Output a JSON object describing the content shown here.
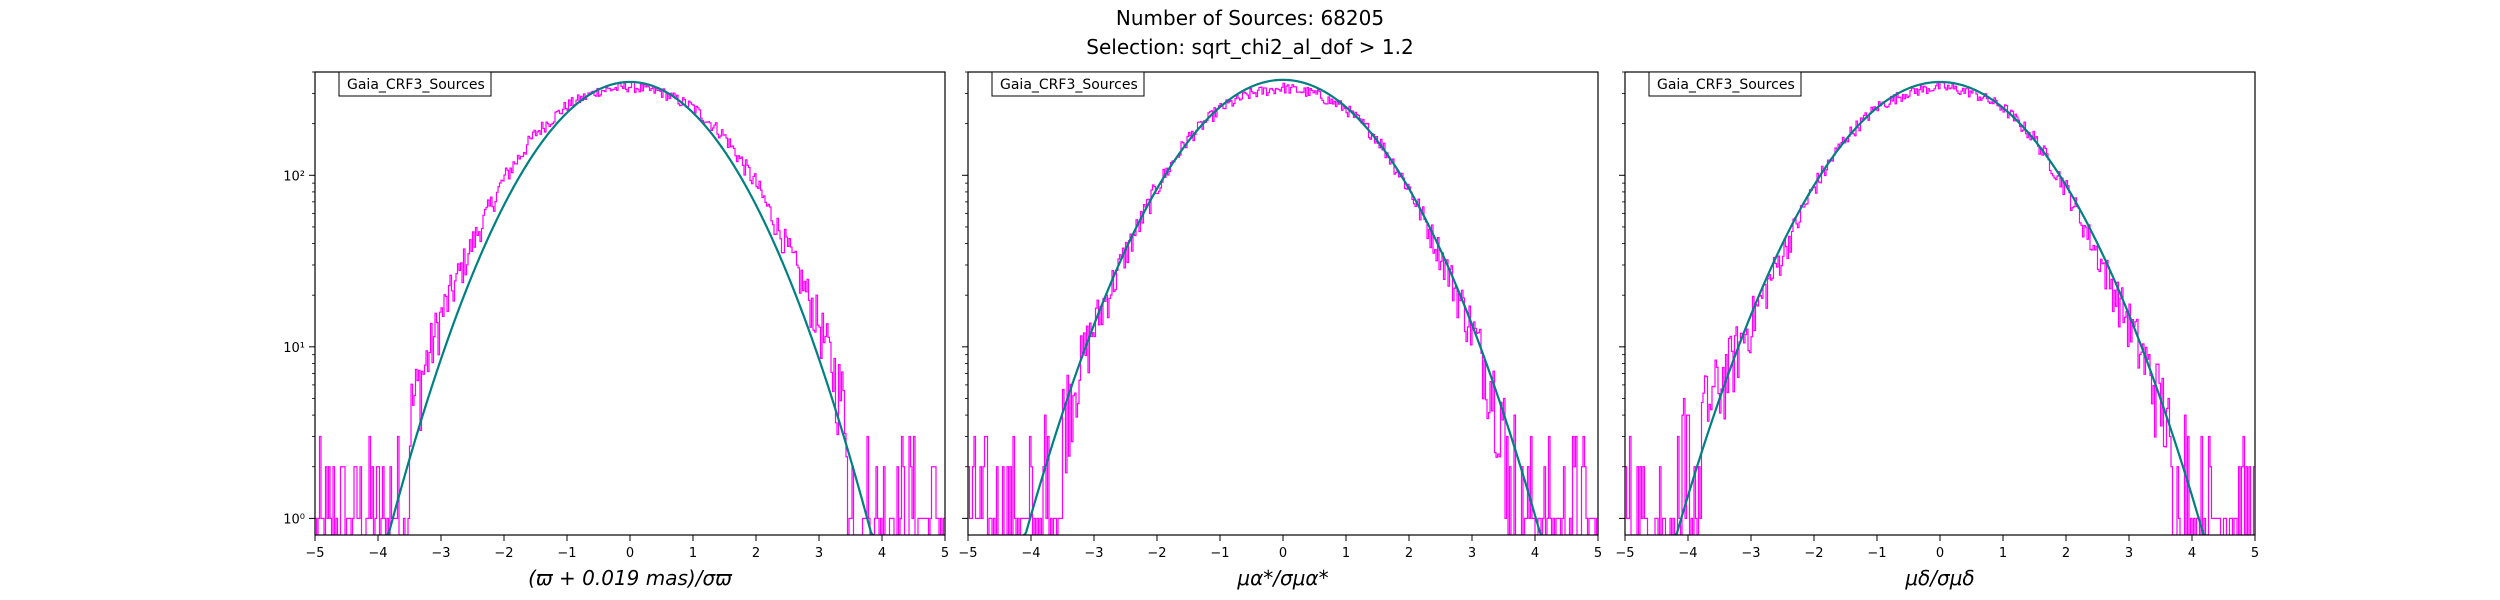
{
  "figure": {
    "title": "Number of Sources: 68205",
    "subtitle": "Selection: sqrt_chi2_al_dof > 1.2"
  },
  "colors": {
    "histogram": "#ff00ff",
    "fit": "#008080",
    "fit_tail": "#1f77b4"
  },
  "chart_data": [
    {
      "type": "line",
      "legend": "Gaia_CRF3_Sources",
      "xlabel": "(ϖ + 0.019 mas)/σϖ",
      "xlim": [
        -5,
        5
      ],
      "ylim": [
        0.8,
        400
      ],
      "yscale": "log",
      "xticks": [
        "−5",
        "−4",
        "−3",
        "−2",
        "−1",
        "0",
        "1",
        "2",
        "3",
        "4",
        "5"
      ],
      "yticks": [
        "10⁰",
        "10¹",
        "10²"
      ],
      "series": [
        {
          "kind": "histogram",
          "x": [
            -5,
            -4.5,
            -4,
            -3.5,
            -3,
            -2.5,
            -2,
            -1.5,
            -1,
            -0.5,
            0,
            0.5,
            1,
            1.5,
            2,
            2.5,
            3,
            3.5,
            4,
            4.5,
            5
          ],
          "values": [
            1,
            1,
            1.5,
            4,
            15,
            40,
            95,
            175,
            255,
            310,
            330,
            305,
            250,
            170,
            90,
            38,
            14,
            3.5,
            1.5,
            1,
            1
          ]
        },
        {
          "kind": "gaussian_fit",
          "amplitude": 350,
          "mean": 0,
          "sigma": 1.1
        }
      ]
    },
    {
      "type": "line",
      "legend": "Gaia_CRF3_Sources",
      "xlabel": "μα*/σμα*",
      "xlim": [
        -5,
        5
      ],
      "ylim": [
        0.8,
        400
      ],
      "yscale": "log",
      "xticks": [
        "−5",
        "−4",
        "−3",
        "−2",
        "−1",
        "0",
        "1",
        "2",
        "3",
        "4",
        "5"
      ],
      "yticks": [],
      "series": [
        {
          "kind": "histogram",
          "x": [
            -5,
            -4.5,
            -4,
            -3.5,
            -3,
            -2.5,
            -2,
            -1.5,
            -1,
            -0.5,
            0,
            0.5,
            1,
            1.5,
            2,
            2.5,
            3,
            3.5,
            4,
            4.5,
            5
          ],
          "values": [
            1,
            1,
            1.5,
            4,
            13,
            35,
            85,
            165,
            245,
            300,
            325,
            300,
            245,
            165,
            85,
            35,
            13,
            4,
            1.5,
            1,
            1
          ]
        },
        {
          "kind": "gaussian_fit",
          "amplitude": 360,
          "mean": 0,
          "sigma": 1.17
        }
      ]
    },
    {
      "type": "line",
      "legend": "Gaia_CRF3_Sources",
      "xlabel": "μδ/σμδ",
      "xlim": [
        -5,
        5
      ],
      "ylim": [
        0.8,
        400
      ],
      "yscale": "log",
      "xticks": [
        "−5",
        "−4",
        "−3",
        "−2",
        "−1",
        "0",
        "1",
        "2",
        "3",
        "4",
        "5"
      ],
      "yticks": [],
      "series": [
        {
          "kind": "histogram",
          "x": [
            -5,
            -4.5,
            -4,
            -3.5,
            -3,
            -2.5,
            -2,
            -1.5,
            -1,
            -0.5,
            0,
            0.5,
            1,
            1.5,
            2,
            2.5,
            3,
            3.5,
            4,
            4.5,
            5
          ],
          "values": [
            1,
            1.5,
            3,
            6,
            14,
            35,
            85,
            165,
            250,
            305,
            330,
            305,
            250,
            165,
            85,
            35,
            14,
            5,
            2,
            1,
            1
          ]
        },
        {
          "kind": "gaussian_fit",
          "amplitude": 350,
          "mean": 0,
          "sigma": 1.2
        }
      ]
    }
  ]
}
